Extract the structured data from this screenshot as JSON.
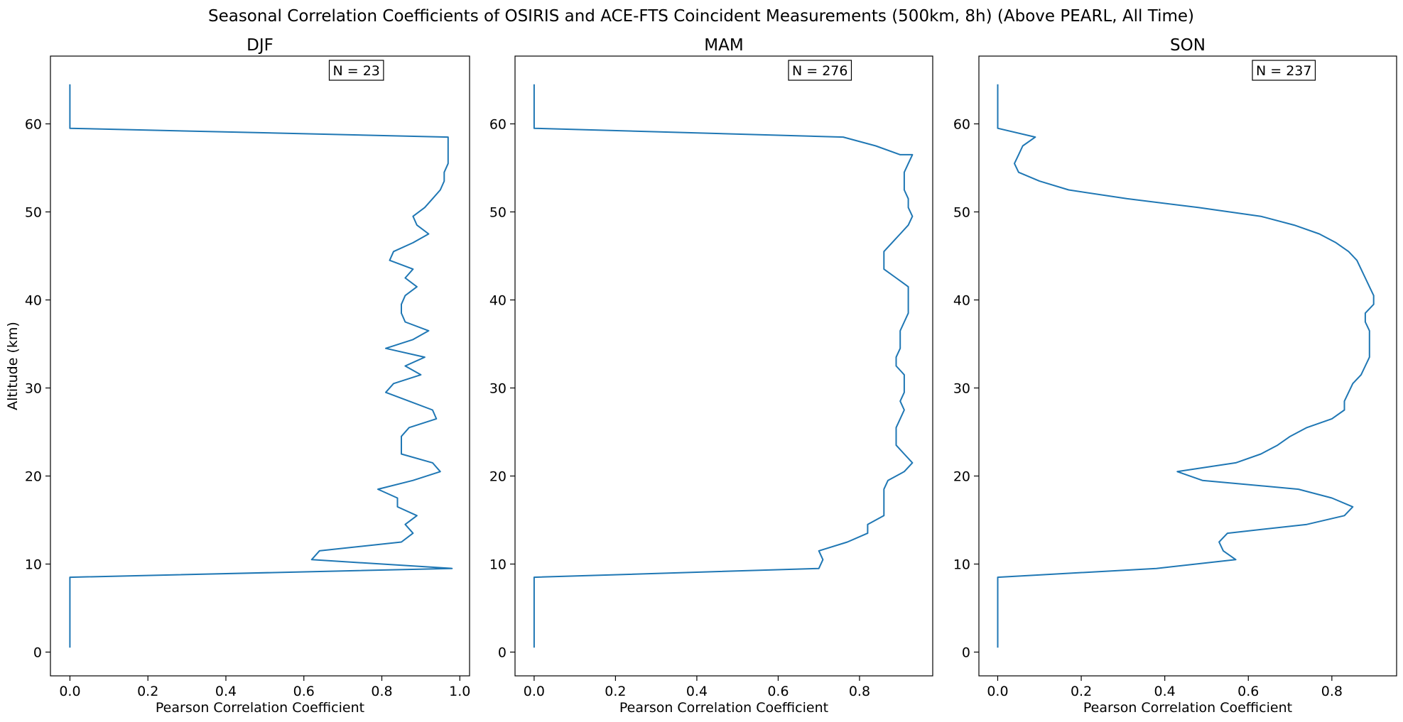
{
  "figure": {
    "title": "Seasonal Correlation Coefficients of OSIRIS and ACE-FTS Coincident Measurements (500km, 8h) (Above PEARL, All Time)"
  },
  "style": {
    "line_color": "#1f77b4",
    "axis_color": "#000000",
    "background": "#ffffff"
  },
  "chart_data": [
    {
      "type": "line",
      "title": "DJF",
      "xlabel": "Pearson Correlation Coefficient",
      "ylabel": "Altitude (km)",
      "annotation": "N = 23",
      "legend": "none",
      "grid": false,
      "xlim": [
        -0.05,
        1.025
      ],
      "ylim": [
        -2.7,
        67.7
      ],
      "xticks": [
        0.0,
        0.2,
        0.4,
        0.6,
        0.8,
        1.0
      ],
      "xtick_labels": [
        "0.0",
        "0.2",
        "0.4",
        "0.6",
        "0.8",
        "1.0"
      ],
      "yticks": [
        0,
        10,
        20,
        30,
        40,
        50,
        60
      ],
      "ytick_labels": [
        "0",
        "10",
        "20",
        "30",
        "40",
        "50",
        "60"
      ],
      "series": [
        {
          "x": [
            0,
            0,
            0,
            0,
            0,
            0,
            0,
            0,
            0,
            0.98,
            0.62,
            0.64,
            0.85,
            0.88,
            0.86,
            0.89,
            0.84,
            0.84,
            0.79,
            0.88,
            0.95,
            0.93,
            0.85,
            0.85,
            0.85,
            0.87,
            0.94,
            0.93,
            0.87,
            0.81,
            0.83,
            0.9,
            0.86,
            0.91,
            0.81,
            0.88,
            0.92,
            0.86,
            0.85,
            0.85,
            0.86,
            0.89,
            0.86,
            0.88,
            0.82,
            0.83,
            0.88,
            0.92,
            0.89,
            0.88,
            0.91,
            0.93,
            0.95,
            0.96,
            0.96,
            0.97,
            0.97,
            0.97,
            0.97,
            0.97,
            0,
            0,
            0,
            0,
            0,
            0
          ],
          "y": [
            0.5,
            1.5,
            2.5,
            3.5,
            4.5,
            5.5,
            6.5,
            7.5,
            8.5,
            9.5,
            10.5,
            11.5,
            12.5,
            13.5,
            14.5,
            15.5,
            16.5,
            17.5,
            18.5,
            19.5,
            20.5,
            21.5,
            22.5,
            23.5,
            24.5,
            25.5,
            26.5,
            27.5,
            28.5,
            29.5,
            30.5,
            31.5,
            32.5,
            33.5,
            34.5,
            35.5,
            36.5,
            37.5,
            38.5,
            39.5,
            40.5,
            41.5,
            42.5,
            43.5,
            44.5,
            45.5,
            46.5,
            47.5,
            48.5,
            49.5,
            50.5,
            51.5,
            52.5,
            53.5,
            54.5,
            55.5,
            56.5,
            57.5,
            58.5,
            58.5,
            59.5,
            60.5,
            61.5,
            62.5,
            63.5,
            64.5
          ]
        }
      ]
    },
    {
      "type": "line",
      "title": "MAM",
      "xlabel": "Pearson Correlation Coefficient",
      "ylabel": "",
      "annotation": "N = 276",
      "legend": "none",
      "grid": false,
      "xlim": [
        -0.047,
        0.98
      ],
      "ylim": [
        -2.7,
        67.7
      ],
      "xticks": [
        0.0,
        0.2,
        0.4,
        0.6,
        0.8
      ],
      "xtick_labels": [
        "0.0",
        "0.2",
        "0.4",
        "0.6",
        "0.8"
      ],
      "yticks": [
        0,
        10,
        20,
        30,
        40,
        50,
        60
      ],
      "ytick_labels": [
        "0",
        "10",
        "20",
        "30",
        "40",
        "50",
        "60"
      ],
      "series": [
        {
          "x": [
            0,
            0,
            0,
            0,
            0,
            0,
            0,
            0,
            0,
            0.7,
            0.71,
            0.7,
            0.77,
            0.82,
            0.82,
            0.86,
            0.86,
            0.86,
            0.86,
            0.87,
            0.91,
            0.93,
            0.91,
            0.89,
            0.89,
            0.89,
            0.9,
            0.91,
            0.9,
            0.91,
            0.91,
            0.91,
            0.89,
            0.89,
            0.9,
            0.9,
            0.9,
            0.91,
            0.92,
            0.92,
            0.92,
            0.92,
            0.89,
            0.86,
            0.86,
            0.86,
            0.88,
            0.9,
            0.92,
            0.93,
            0.92,
            0.92,
            0.91,
            0.91,
            0.91,
            0.92,
            0.93,
            0.93,
            0.93,
            0.9,
            0.84,
            0.76,
            0,
            0,
            0,
            0,
            0,
            0
          ],
          "y": [
            0.5,
            1.5,
            2.5,
            3.5,
            4.5,
            5.5,
            6.5,
            7.5,
            8.5,
            9.5,
            10.5,
            11.5,
            12.5,
            13.5,
            14.5,
            15.5,
            16.5,
            17.5,
            18.5,
            19.5,
            20.5,
            21.5,
            22.5,
            23.5,
            24.5,
            25.5,
            26.5,
            27.5,
            28.5,
            29.5,
            30.5,
            31.5,
            32.5,
            33.5,
            34.5,
            35.5,
            36.5,
            37.5,
            38.5,
            39.5,
            40.5,
            41.5,
            42.5,
            43.5,
            44.5,
            45.5,
            46.5,
            47.5,
            48.5,
            49.5,
            50.5,
            51.5,
            52.5,
            53.5,
            54.5,
            55.5,
            56.5,
            56.5,
            56.5,
            56.5,
            57.5,
            58.5,
            59.5,
            60.5,
            61.5,
            62.5,
            63.5,
            64.5
          ]
        }
      ]
    },
    {
      "type": "line",
      "title": "SON",
      "xlabel": "Pearson Correlation Coefficient",
      "ylabel": "",
      "annotation": "N = 237",
      "legend": "none",
      "grid": false,
      "xlim": [
        -0.045,
        0.955
      ],
      "ylim": [
        -2.7,
        67.7
      ],
      "xticks": [
        0.0,
        0.2,
        0.4,
        0.6,
        0.8
      ],
      "xtick_labels": [
        "0.0",
        "0.2",
        "0.4",
        "0.6",
        "0.8"
      ],
      "yticks": [
        0,
        10,
        20,
        30,
        40,
        50,
        60
      ],
      "ytick_labels": [
        "0",
        "10",
        "20",
        "30",
        "40",
        "50",
        "60"
      ],
      "series": [
        {
          "x": [
            0,
            0,
            0,
            0,
            0,
            0,
            0,
            0,
            0,
            0.38,
            0.57,
            0.54,
            0.53,
            0.55,
            0.74,
            0.83,
            0.85,
            0.8,
            0.72,
            0.49,
            0.43,
            0.57,
            0.63,
            0.67,
            0.7,
            0.74,
            0.8,
            0.83,
            0.83,
            0.84,
            0.85,
            0.87,
            0.88,
            0.89,
            0.89,
            0.89,
            0.89,
            0.88,
            0.88,
            0.9,
            0.9,
            0.89,
            0.88,
            0.87,
            0.86,
            0.84,
            0.81,
            0.77,
            0.71,
            0.63,
            0.48,
            0.31,
            0.17,
            0.1,
            0.05,
            0.04,
            0.05,
            0.06,
            0.09,
            0,
            0,
            0,
            0,
            0,
            0,
            0
          ],
          "y": [
            0.5,
            1.5,
            2.5,
            3.5,
            4.5,
            5.5,
            6.5,
            7.5,
            8.5,
            9.5,
            10.5,
            11.5,
            12.5,
            13.5,
            14.5,
            15.5,
            16.5,
            17.5,
            18.5,
            19.5,
            20.5,
            21.5,
            22.5,
            23.5,
            24.5,
            25.5,
            26.5,
            27.5,
            28.5,
            29.5,
            30.5,
            31.5,
            32.5,
            33.5,
            34.5,
            35.5,
            36.5,
            37.5,
            38.5,
            39.5,
            40.5,
            41.5,
            42.5,
            43.5,
            44.5,
            45.5,
            46.5,
            47.5,
            48.5,
            49.5,
            50.5,
            51.5,
            52.5,
            53.5,
            54.5,
            55.5,
            56.5,
            57.5,
            58.5,
            59.5,
            60.5,
            61.5,
            62.5,
            63.5,
            64.5,
            64.5
          ]
        }
      ]
    }
  ]
}
